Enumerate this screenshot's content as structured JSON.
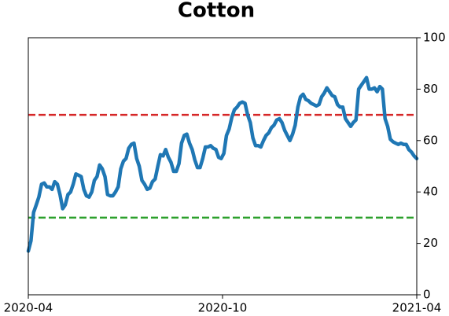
{
  "chart_data": {
    "type": "line",
    "title": "Cotton",
    "xlim": [
      "2020-04",
      "2021-04"
    ],
    "xticks": [
      "2020-04",
      "2020-10",
      "2021-04"
    ],
    "ylim": [
      0,
      100
    ],
    "yticks": [
      0,
      20,
      40,
      60,
      80,
      100
    ],
    "series": [
      {
        "color": "#1f77b4",
        "values": [
          17,
          21,
          32,
          35,
          38,
          43,
          43.5,
          42,
          42,
          41,
          44,
          43,
          39,
          33.5,
          35,
          39,
          40,
          43,
          47,
          46.5,
          46,
          41,
          38.5,
          38,
          40,
          44.5,
          46,
          50.5,
          49,
          46,
          39,
          38.5,
          38.5,
          40,
          42,
          49,
          52,
          53,
          57,
          58.5,
          59,
          53,
          50,
          44.5,
          43,
          41,
          41.5,
          44,
          45,
          50,
          54.5,
          54,
          56.5,
          53.5,
          51.5,
          48,
          48,
          51,
          59,
          62,
          62.5,
          59,
          56.5,
          52.5,
          49.5,
          49.5,
          53,
          57.5,
          57.5,
          58,
          57,
          56.5,
          53.5,
          53,
          55,
          62,
          64.5,
          69,
          72,
          73,
          74.5,
          75,
          74.5,
          70,
          67,
          61,
          58,
          58,
          57.5,
          60,
          62,
          63,
          65,
          66,
          68,
          68.5,
          67,
          64,
          62,
          60,
          62.5,
          66,
          73,
          77,
          78,
          76,
          75.5,
          74.5,
          74,
          73.5,
          74,
          77,
          78.5,
          80.5,
          79,
          77.5,
          77,
          74,
          73,
          73,
          68.5,
          67,
          65.5,
          67,
          68,
          80,
          81.5,
          83,
          84.5,
          80,
          80,
          80.5,
          79,
          81,
          80,
          68.5,
          65.5,
          60.5,
          59.5,
          59,
          58.5,
          59,
          58.5,
          58.5,
          56.5,
          55.5,
          54,
          53
        ]
      }
    ],
    "hlines": [
      {
        "value": 70,
        "color": "#d62728"
      },
      {
        "value": 30,
        "color": "#2ca02c"
      }
    ]
  }
}
